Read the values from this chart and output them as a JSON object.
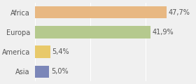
{
  "categories": [
    "Asia",
    "America",
    "Europa",
    "Africa"
  ],
  "values": [
    5.0,
    5.4,
    41.9,
    47.7
  ],
  "labels": [
    "5,0%",
    "5,4%",
    "41,9%",
    "47,7%"
  ],
  "bar_colors": [
    "#7b86b8",
    "#e8c96a",
    "#b5c98e",
    "#e8b882"
  ],
  "xlim": [
    0,
    57
  ],
  "background_color": "#f0f0f0",
  "label_fontsize": 7.0,
  "tick_fontsize": 7.0,
  "bar_height": 0.62
}
